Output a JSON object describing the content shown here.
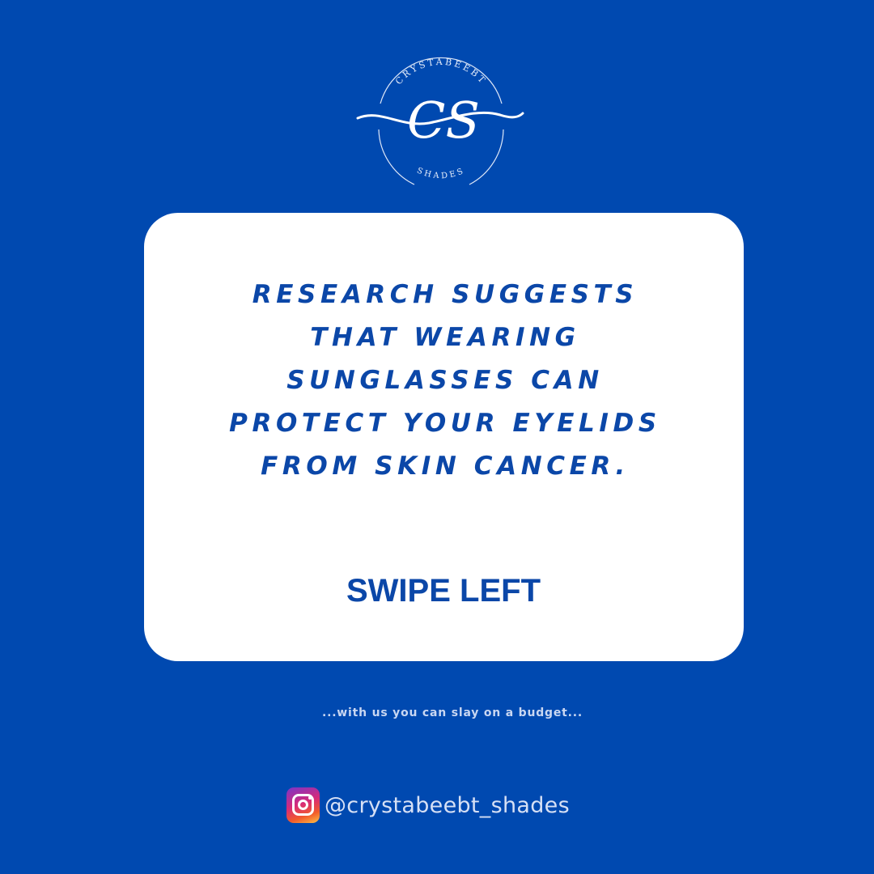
{
  "logo": {
    "top_text": "CRYSTABEEBT",
    "monogram": "CS",
    "bottom_text": "SHADES"
  },
  "card": {
    "headline_lines": [
      "RESEARCH SUGGESTS",
      "THAT WEARING",
      "SUNGLASSES CAN",
      "PROTECT YOUR EYELIDS",
      "FROM SKIN CANCER."
    ],
    "cta": "SWIPE LEFT"
  },
  "tagline": "...with us you can slay on a budget...",
  "social": {
    "icon": "instagram-icon",
    "handle": "@crystabeebt_shades"
  },
  "colors": {
    "background": "#0049b0",
    "card": "#ffffff",
    "text_blue": "#0b47a8"
  }
}
